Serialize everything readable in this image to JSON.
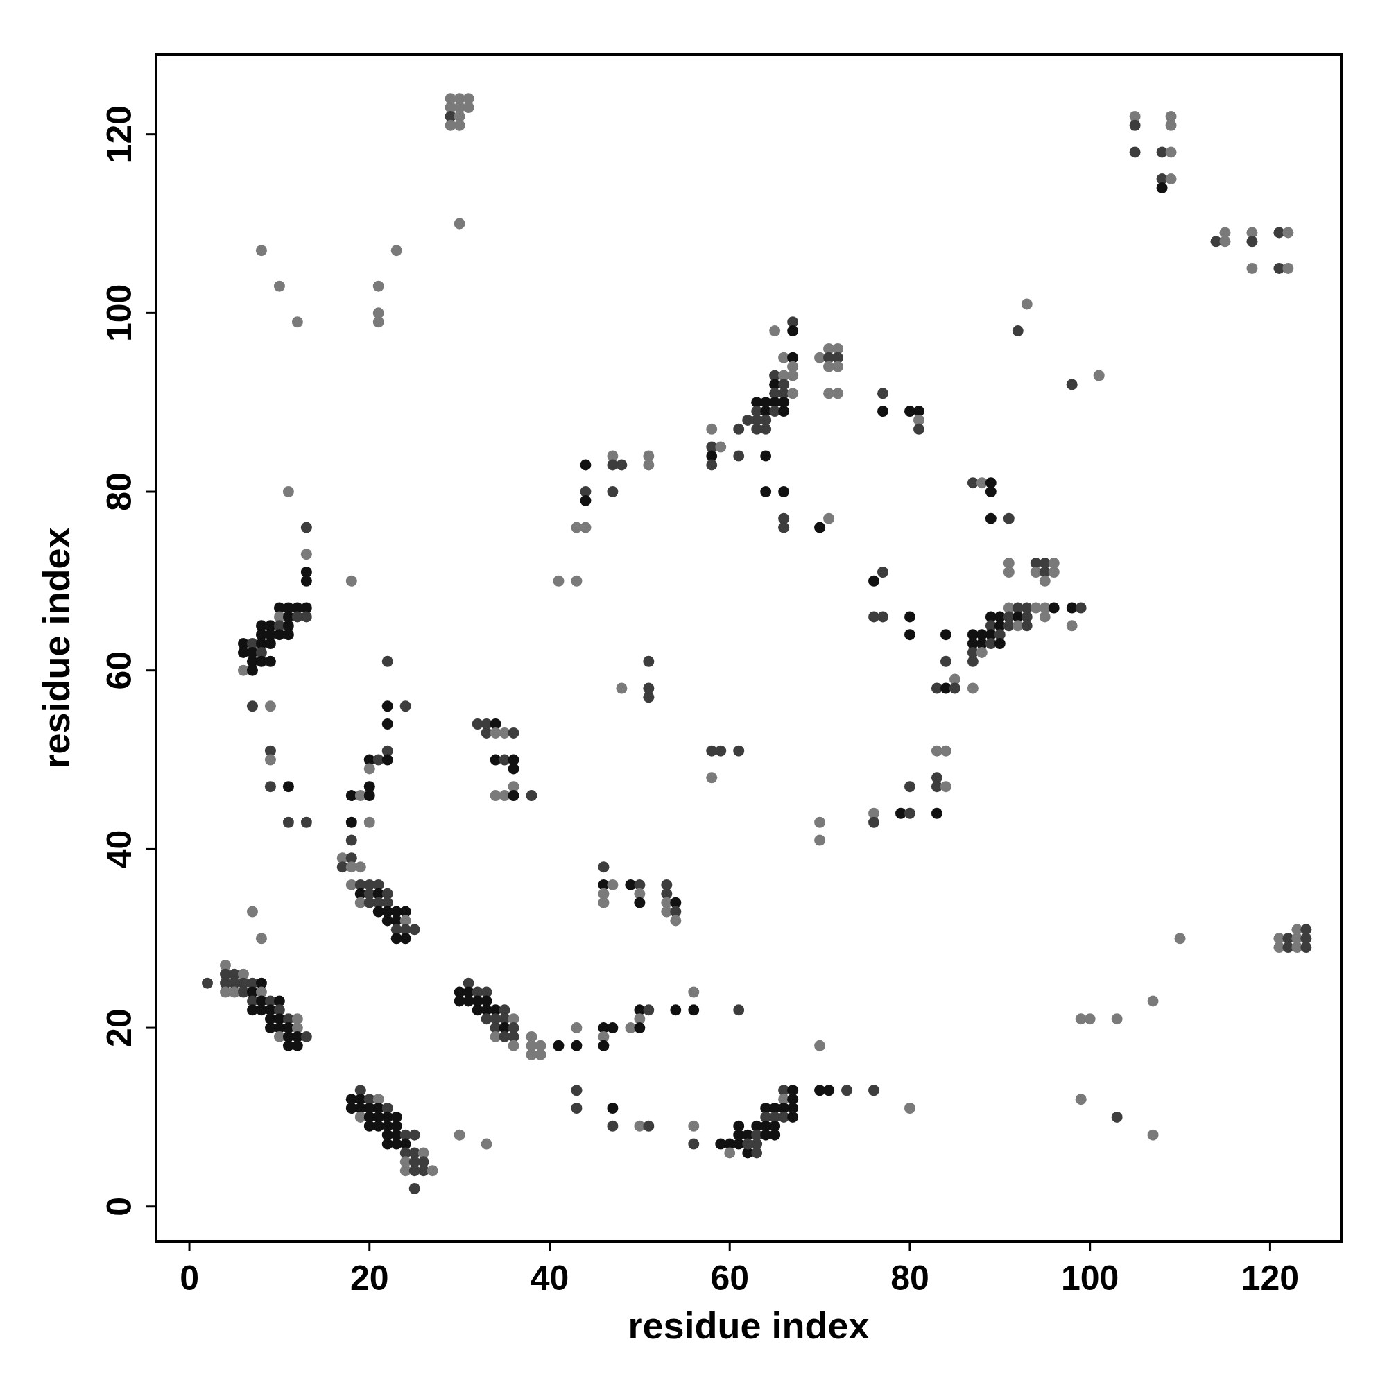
{
  "chart_data": {
    "type": "scatter",
    "xlabel": "residue index",
    "ylabel": "residue index",
    "xlim": [
      -3.7,
      127.9
    ],
    "ylim": [
      -3.9,
      128.9
    ],
    "xticks": [
      0,
      20,
      40,
      60,
      80,
      100,
      120
    ],
    "yticks": [
      0,
      20,
      40,
      60,
      80,
      100,
      120
    ],
    "marker": "circle",
    "series": [
      {
        "x": [
          2,
          4,
          4,
          4,
          4,
          5,
          5,
          5,
          6,
          6,
          6,
          7,
          7,
          7,
          7,
          8,
          8,
          8,
          8,
          9,
          9,
          9,
          9,
          10,
          10,
          10,
          10,
          10,
          11,
          11,
          11,
          11,
          12,
          12,
          12,
          12,
          13,
          7,
          8,
          18,
          18,
          19,
          19,
          19,
          19,
          20,
          20,
          20,
          20,
          21,
          21,
          21,
          21,
          22,
          22,
          22,
          22,
          22,
          23,
          23,
          23,
          23,
          24,
          24,
          24,
          24,
          24,
          25,
          25,
          25,
          25,
          25,
          26,
          26,
          26,
          27,
          17,
          17,
          18,
          18,
          18,
          19,
          19,
          19,
          19,
          20,
          20,
          20,
          21,
          21,
          21,
          21,
          22,
          22,
          22,
          22,
          23,
          23,
          23,
          23,
          24,
          24,
          24,
          24,
          25,
          6,
          6,
          6,
          7,
          7,
          7,
          7,
          8,
          8,
          8,
          8,
          8,
          9,
          9,
          9,
          9,
          10,
          10,
          10,
          10,
          11,
          11,
          11,
          11,
          12,
          12,
          13,
          13,
          13,
          13,
          13,
          13,
          7,
          9,
          9,
          9,
          9,
          11,
          11,
          13,
          11,
          18,
          8,
          10,
          12,
          21,
          21,
          21,
          23,
          30,
          29,
          29,
          29,
          29,
          30,
          30,
          30,
          30,
          31,
          31,
          18,
          18,
          18,
          19,
          20,
          20,
          20,
          20,
          20,
          21,
          22,
          22,
          22,
          22,
          22,
          24,
          30,
          30,
          31,
          31,
          31,
          32,
          32,
          32,
          33,
          33,
          33,
          33,
          34,
          34,
          34,
          34,
          35,
          35,
          35,
          35,
          36,
          36,
          36,
          36,
          38,
          38,
          38,
          39,
          39,
          41,
          43,
          43,
          46,
          46,
          46,
          47,
          49,
          50,
          50,
          50,
          51,
          54,
          56,
          56,
          61,
          32,
          33,
          33,
          34,
          34,
          34,
          34,
          35,
          35,
          35,
          36,
          36,
          36,
          36,
          36,
          38,
          46,
          46,
          46,
          46,
          47,
          49,
          50,
          50,
          50,
          53,
          53,
          53,
          53,
          54,
          54,
          54,
          30,
          33,
          43,
          43,
          47,
          47,
          50,
          51,
          56,
          56,
          59,
          60,
          60,
          61,
          61,
          61,
          62,
          62,
          62,
          63,
          63,
          63,
          63,
          64,
          64,
          64,
          64,
          65,
          65,
          65,
          65,
          66,
          66,
          66,
          66,
          67,
          67,
          67,
          67,
          70,
          71,
          73,
          76,
          80,
          70,
          41,
          43,
          43,
          44,
          44,
          44,
          44,
          47,
          47,
          47,
          48,
          48,
          51,
          51,
          51,
          51,
          51,
          58,
          58,
          58,
          58,
          59,
          61,
          61,
          58,
          59,
          58,
          61,
          62,
          63,
          63,
          63,
          63,
          64,
          64,
          64,
          64,
          64,
          64,
          65,
          65,
          65,
          65,
          65,
          65,
          66,
          66,
          66,
          66,
          66,
          66,
          66,
          66,
          66,
          67,
          67,
          67,
          67,
          67,
          67,
          70,
          71,
          71,
          71,
          71,
          72,
          72,
          72,
          72,
          70,
          71,
          77,
          77,
          80,
          81,
          81,
          81,
          76,
          77,
          76,
          77,
          80,
          80,
          84,
          84,
          83,
          84,
          85,
          85,
          87,
          83,
          84,
          83,
          83,
          84,
          83,
          80,
          79,
          80,
          76,
          76,
          70,
          70,
          87,
          88,
          89,
          89,
          89,
          91,
          87,
          87,
          87,
          87,
          88,
          88,
          88,
          89,
          89,
          89,
          89,
          90,
          90,
          90,
          90,
          91,
          91,
          91,
          92,
          92,
          92,
          93,
          93,
          93,
          94,
          95,
          95,
          96,
          91,
          91,
          94,
          94,
          95,
          95,
          95,
          96,
          96,
          98,
          99,
          98,
          92,
          93,
          98,
          101,
          105,
          105,
          105,
          108,
          108,
          108,
          109,
          109,
          109,
          109,
          114,
          115,
          115,
          118,
          118,
          118,
          121,
          121,
          122,
          122,
          99,
          100,
          103,
          107,
          110,
          99,
          103,
          107,
          121,
          121,
          122,
          122,
          123,
          123,
          123,
          124,
          124,
          124
        ],
        "values": [
          25,
          27,
          26,
          25,
          24,
          26,
          25,
          24,
          26,
          25,
          24,
          25,
          24,
          23,
          22,
          25,
          24,
          23,
          22,
          23,
          22,
          21,
          20,
          23,
          22,
          21,
          20,
          19,
          21,
          20,
          19,
          18,
          21,
          20,
          19,
          18,
          19,
          33,
          30,
          12,
          11,
          13,
          12,
          11,
          10,
          12,
          11,
          10,
          9,
          12,
          11,
          10,
          9,
          11,
          10,
          9,
          8,
          7,
          10,
          9,
          8,
          7,
          8,
          7,
          6,
          5,
          4,
          8,
          6,
          5,
          4,
          2,
          6,
          5,
          4,
          4,
          39,
          38,
          39,
          38,
          36,
          38,
          36,
          35,
          34,
          36,
          35,
          34,
          36,
          35,
          34,
          33,
          35,
          34,
          33,
          32,
          33,
          32,
          31,
          30,
          33,
          32,
          31,
          30,
          31,
          63,
          62,
          60,
          63,
          62,
          61,
          60,
          65,
          64,
          63,
          62,
          61,
          65,
          64,
          63,
          61,
          67,
          66,
          65,
          64,
          67,
          66,
          65,
          64,
          67,
          66,
          76,
          73,
          71,
          70,
          67,
          66,
          56,
          56,
          51,
          50,
          47,
          47,
          43,
          43,
          80,
          70,
          107,
          103,
          99,
          103,
          100,
          99,
          107,
          110,
          124,
          123,
          122,
          121,
          124,
          123,
          122,
          121,
          124,
          123,
          46,
          43,
          41,
          46,
          50,
          49,
          47,
          46,
          43,
          50,
          61,
          56,
          54,
          51,
          50,
          56,
          24,
          23,
          25,
          24,
          23,
          24,
          23,
          22,
          24,
          23,
          22,
          21,
          22,
          21,
          20,
          19,
          22,
          21,
          20,
          19,
          21,
          20,
          19,
          18,
          19,
          18,
          17,
          18,
          17,
          18,
          20,
          18,
          20,
          19,
          18,
          20,
          20,
          22,
          21,
          20,
          22,
          22,
          24,
          22,
          22,
          54,
          54,
          53,
          54,
          53,
          50,
          46,
          53,
          50,
          46,
          53,
          50,
          49,
          47,
          46,
          46,
          38,
          36,
          35,
          34,
          36,
          36,
          36,
          35,
          34,
          36,
          35,
          34,
          33,
          34,
          33,
          32,
          8,
          7,
          13,
          11,
          11,
          9,
          9,
          9,
          9,
          7,
          7,
          7,
          6,
          9,
          8,
          7,
          8,
          6,
          7,
          9,
          8,
          7,
          6,
          11,
          10,
          9,
          8,
          11,
          10,
          9,
          8,
          13,
          12,
          11,
          10,
          13,
          12,
          11,
          10,
          13,
          13,
          13,
          13,
          11,
          18,
          70,
          76,
          70,
          83,
          80,
          79,
          76,
          84,
          83,
          80,
          83,
          58,
          84,
          83,
          61,
          58,
          57,
          87,
          85,
          84,
          83,
          85,
          87,
          84,
          51,
          51,
          48,
          51,
          88,
          88,
          87,
          90,
          89,
          90,
          89,
          88,
          87,
          84,
          80,
          98,
          93,
          92,
          91,
          90,
          89,
          95,
          93,
          92,
          91,
          90,
          89,
          80,
          77,
          76,
          99,
          98,
          95,
          94,
          93,
          91,
          95,
          96,
          95,
          94,
          91,
          96,
          95,
          94,
          91,
          76,
          77,
          91,
          89,
          89,
          89,
          88,
          87,
          70,
          71,
          66,
          66,
          66,
          64,
          64,
          61,
          58,
          58,
          59,
          58,
          58,
          51,
          51,
          48,
          47,
          47,
          44,
          47,
          44,
          44,
          44,
          43,
          43,
          41,
          81,
          81,
          81,
          80,
          77,
          77,
          64,
          63,
          62,
          61,
          64,
          63,
          62,
          66,
          65,
          64,
          63,
          66,
          65,
          64,
          63,
          67,
          66,
          65,
          67,
          66,
          65,
          67,
          66,
          65,
          67,
          67,
          66,
          67,
          72,
          71,
          72,
          71,
          72,
          71,
          70,
          72,
          71,
          67,
          67,
          65,
          98,
          101,
          92,
          93,
          122,
          121,
          118,
          118,
          115,
          114,
          122,
          121,
          118,
          115,
          108,
          109,
          108,
          109,
          108,
          105,
          109,
          105,
          109,
          105,
          21,
          21,
          21,
          23,
          30,
          12,
          10,
          8,
          30,
          29,
          30,
          29,
          31,
          30,
          29,
          31,
          30,
          29
        ],
        "colors": [
          "#3d3d3d",
          "#7a7a7a",
          "#3d3d3d",
          "#3d3d3d",
          "#7a7a7a",
          "#3d3d3d",
          "#3d3d3d",
          "#7a7a7a",
          "#7a7a7a",
          "#3d3d3d",
          "#3d3d3d",
          "#3d3d3d",
          "#111111",
          "#3d3d3d",
          "#111111",
          "#111111",
          "#7a7a7a",
          "#111111",
          "#111111",
          "#3d3d3d",
          "#111111",
          "#111111",
          "#111111",
          "#111111",
          "#3d3d3d",
          "#111111",
          "#111111",
          "#7a7a7a",
          "#3d3d3d",
          "#111111",
          "#111111",
          "#111111",
          "#7a7a7a",
          "#7a7a7a",
          "#111111",
          "#111111",
          "#3d3d3d",
          "#7a7a7a",
          "#7a7a7a",
          "#111111",
          "#111111",
          "#3d3d3d",
          "#111111",
          "#111111",
          "#7a7a7a",
          "#3d3d3d",
          "#111111",
          "#111111",
          "#111111",
          "#7a7a7a",
          "#111111",
          "#111111",
          "#111111",
          "#3d3d3d",
          "#111111",
          "#111111",
          "#111111",
          "#111111",
          "#111111",
          "#111111",
          "#111111",
          "#111111",
          "#3d3d3d",
          "#111111",
          "#3d3d3d",
          "#7a7a7a",
          "#7a7a7a",
          "#3d3d3d",
          "#3d3d3d",
          "#3d3d3d",
          "#3d3d3d",
          "#3d3d3d",
          "#7a7a7a",
          "#3d3d3d",
          "#3d3d3d",
          "#7a7a7a",
          "#7a7a7a",
          "#3d3d3d",
          "#3d3d3d",
          "#7a7a7a",
          "#7a7a7a",
          "#7a7a7a",
          "#3d3d3d",
          "#111111",
          "#7a7a7a",
          "#3d3d3d",
          "#3d3d3d",
          "#3d3d3d",
          "#3d3d3d",
          "#111111",
          "#3d3d3d",
          "#111111",
          "#3d3d3d",
          "#3d3d3d",
          "#111111",
          "#111111",
          "#111111",
          "#111111",
          "#3d3d3d",
          "#111111",
          "#111111",
          "#7a7a7a",
          "#3d3d3d",
          "#111111",
          "#3d3d3d",
          "#111111",
          "#111111",
          "#7a7a7a",
          "#3d3d3d",
          "#111111",
          "#111111",
          "#111111",
          "#111111",
          "#111111",
          "#111111",
          "#3d3d3d",
          "#111111",
          "#111111",
          "#111111",
          "#111111",
          "#111111",
          "#111111",
          "#7a7a7a",
          "#3d3d3d",
          "#111111",
          "#111111",
          "#111111",
          "#111111",
          "#111111",
          "#111111",
          "#3d3d3d",
          "#3d3d3d",
          "#7a7a7a",
          "#111111",
          "#111111",
          "#111111",
          "#3d3d3d",
          "#3d3d3d",
          "#7a7a7a",
          "#3d3d3d",
          "#7a7a7a",
          "#3d3d3d",
          "#111111",
          "#3d3d3d",
          "#3d3d3d",
          "#7a7a7a",
          "#7a7a7a",
          "#7a7a7a",
          "#7a7a7a",
          "#7a7a7a",
          "#7a7a7a",
          "#7a7a7a",
          "#7a7a7a",
          "#7a7a7a",
          "#7a7a7a",
          "#7a7a7a",
          "#7a7a7a",
          "#3d3d3d",
          "#7a7a7a",
          "#7a7a7a",
          "#7a7a7a",
          "#7a7a7a",
          "#7a7a7a",
          "#7a7a7a",
          "#7a7a7a",
          "#111111",
          "#111111",
          "#3d3d3d",
          "#7a7a7a",
          "#111111",
          "#7a7a7a",
          "#111111",
          "#111111",
          "#7a7a7a",
          "#3d3d3d",
          "#3d3d3d",
          "#111111",
          "#111111",
          "#3d3d3d",
          "#111111",
          "#3d3d3d",
          "#111111",
          "#111111",
          "#3d3d3d",
          "#111111",
          "#111111",
          "#3d3d3d",
          "#111111",
          "#111111",
          "#3d3d3d",
          "#111111",
          "#111111",
          "#3d3d3d",
          "#111111",
          "#3d3d3d",
          "#3d3d3d",
          "#7a7a7a",
          "#3d3d3d",
          "#3d3d3d",
          "#111111",
          "#3d3d3d",
          "#7a7a7a",
          "#3d3d3d",
          "#3d3d3d",
          "#7a7a7a",
          "#7a7a7a",
          "#7a7a7a",
          "#7a7a7a",
          "#7a7a7a",
          "#7a7a7a",
          "#111111",
          "#7a7a7a",
          "#111111",
          "#111111",
          "#7a7a7a",
          "#111111",
          "#111111",
          "#7a7a7a",
          "#111111",
          "#7a7a7a",
          "#111111",
          "#3d3d3d",
          "#111111",
          "#7a7a7a",
          "#111111",
          "#3d3d3d",
          "#3d3d3d",
          "#3d3d3d",
          "#3d3d3d",
          "#111111",
          "#7a7a7a",
          "#111111",
          "#7a7a7a",
          "#7a7a7a",
          "#3d3d3d",
          "#7a7a7a",
          "#3d3d3d",
          "#111111",
          "#111111",
          "#7a7a7a",
          "#111111",
          "#3d3d3d",
          "#3d3d3d",
          "#111111",
          "#7a7a7a",
          "#7a7a7a",
          "#7a7a7a",
          "#111111",
          "#3d3d3d",
          "#7a7a7a",
          "#111111",
          "#3d3d3d",
          "#3d3d3d",
          "#7a7a7a",
          "#7a7a7a",
          "#111111",
          "#3d3d3d",
          "#7a7a7a",
          "#7a7a7a",
          "#7a7a7a",
          "#3d3d3d",
          "#3d3d3d",
          "#111111",
          "#3d3d3d",
          "#7a7a7a",
          "#3d3d3d",
          "#7a7a7a",
          "#3d3d3d",
          "#111111",
          "#111111",
          "#7a7a7a",
          "#111111",
          "#111111",
          "#111111",
          "#111111",
          "#111111",
          "#3d3d3d",
          "#111111",
          "#3d3d3d",
          "#3d3d3d",
          "#3d3d3d",
          "#111111",
          "#3d3d3d",
          "#111111",
          "#111111",
          "#111111",
          "#3d3d3d",
          "#111111",
          "#111111",
          "#3d3d3d",
          "#7a7a7a",
          "#111111",
          "#3d3d3d",
          "#111111",
          "#111111",
          "#111111",
          "#111111",
          "#111111",
          "#111111",
          "#3d3d3d",
          "#3d3d3d",
          "#7a7a7a",
          "#7a7a7a",
          "#7a7a7a",
          "#7a7a7a",
          "#7a7a7a",
          "#111111",
          "#3d3d3d",
          "#111111",
          "#7a7a7a",
          "#7a7a7a",
          "#3d3d3d",
          "#3d3d3d",
          "#3d3d3d",
          "#7a7a7a",
          "#7a7a7a",
          "#7a7a7a",
          "#3d3d3d",
          "#3d3d3d",
          "#3d3d3d",
          "#7a7a7a",
          "#3d3d3d",
          "#111111",
          "#3d3d3d",
          "#7a7a7a",
          "#3d3d3d",
          "#3d3d3d",
          "#3d3d3d",
          "#3d3d3d",
          "#7a7a7a",
          "#3d3d3d",
          "#3d3d3d",
          "#3d3d3d",
          "#3d3d3d",
          "#111111",
          "#3d3d3d",
          "#111111",
          "#111111",
          "#3d3d3d",
          "#3d3d3d",
          "#111111",
          "#111111",
          "#7a7a7a",
          "#3d3d3d",
          "#111111",
          "#3d3d3d",
          "#111111",
          "#3d3d3d",
          "#7a7a7a",
          "#7a7a7a",
          "#3d3d3d",
          "#3d3d3d",
          "#111111",
          "#111111",
          "#111111",
          "#3d3d3d",
          "#3d3d3d",
          "#3d3d3d",
          "#111111",
          "#111111",
          "#7a7a7a",
          "#7a7a7a",
          "#7a7a7a",
          "#7a7a7a",
          "#7a7a7a",
          "#3d3d3d",
          "#7a7a7a",
          "#7a7a7a",
          "#7a7a7a",
          "#3d3d3d",
          "#7a7a7a",
          "#7a7a7a",
          "#111111",
          "#7a7a7a",
          "#3d3d3d",
          "#111111",
          "#111111",
          "#111111",
          "#7a7a7a",
          "#3d3d3d",
          "#111111",
          "#3d3d3d",
          "#3d3d3d",
          "#3d3d3d",
          "#111111",
          "#111111",
          "#111111",
          "#3d3d3d",
          "#3d3d3d",
          "#111111",
          "#7a7a7a",
          "#3d3d3d",
          "#7a7a7a",
          "#7a7a7a",
          "#7a7a7a",
          "#3d3d3d",
          "#3d3d3d",
          "#7a7a7a",
          "#111111",
          "#3d3d3d",
          "#111111",
          "#3d3d3d",
          "#7a7a7a",
          "#3d3d3d",
          "#7a7a7a",
          "#7a7a7a",
          "#3d3d3d",
          "#7a7a7a",
          "#111111",
          "#111111",
          "#111111",
          "#3d3d3d",
          "#111111",
          "#111111",
          "#3d3d3d",
          "#3d3d3d",
          "#111111",
          "#111111",
          "#7a7a7a",
          "#111111",
          "#3d3d3d",
          "#111111",
          "#3d3d3d",
          "#111111",
          "#111111",
          "#3d3d3d",
          "#111111",
          "#7a7a7a",
          "#3d3d3d",
          "#3d3d3d",
          "#3d3d3d",
          "#111111",
          "#7a7a7a",
          "#3d3d3d",
          "#3d3d3d",
          "#3d3d3d",
          "#7a7a7a",
          "#7a7a7a",
          "#7a7a7a",
          "#111111",
          "#7a7a7a",
          "#7a7a7a",
          "#3d3d3d",
          "#7a7a7a",
          "#3d3d3d",
          "#3d3d3d",
          "#7a7a7a",
          "#7a7a7a",
          "#7a7a7a",
          "#111111",
          "#3d3d3d",
          "#7a7a7a",
          "#3d3d3d",
          "#7a7a7a",
          "#3d3d3d",
          "#7a7a7a",
          "#7a7a7a",
          "#3d3d3d",
          "#3d3d3d",
          "#3d3d3d",
          "#3d3d3d",
          "#111111",
          "#7a7a7a",
          "#7a7a7a",
          "#7a7a7a",
          "#7a7a7a",
          "#3d3d3d",
          "#7a7a7a",
          "#7a7a7a",
          "#7a7a7a",
          "#3d3d3d",
          "#7a7a7a",
          "#3d3d3d",
          "#3d3d3d",
          "#7a7a7a",
          "#7a7a7a",
          "#7a7a7a",
          "#7a7a7a",
          "#7a7a7a",
          "#7a7a7a",
          "#7a7a7a",
          "#7a7a7a",
          "#3d3d3d",
          "#7a7a7a",
          "#7a7a7a",
          "#7a7a7a",
          "#3d3d3d",
          "#3d3d3d",
          "#7a7a7a",
          "#7a7a7a",
          "#7a7a7a",
          "#3d3d3d",
          "#3d3d3d",
          "#3d3d3d"
        ]
      }
    ]
  }
}
